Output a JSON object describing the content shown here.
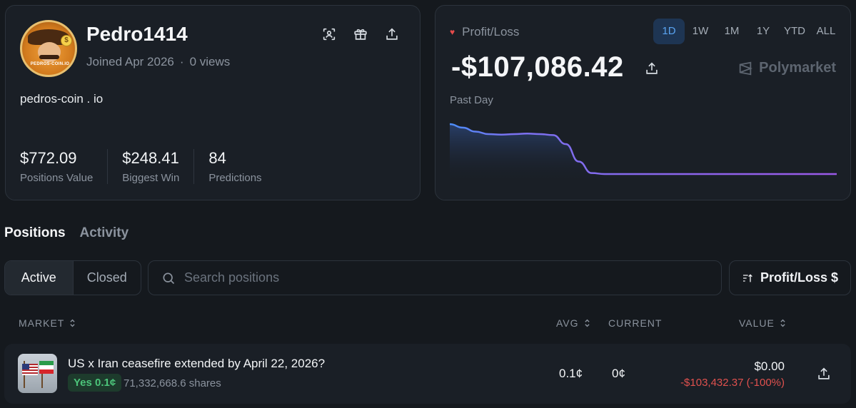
{
  "profile": {
    "username": "Pedro1414",
    "joined": "Joined Apr 2026",
    "views": "0 views",
    "bio": "pedros-coin . io",
    "avatar_text": "PEDROS-COIN.IO",
    "avatar_coin": "$",
    "actions": [
      {
        "name": "scan-icon"
      },
      {
        "name": "gift-icon"
      },
      {
        "name": "share-icon"
      }
    ],
    "stats": [
      {
        "value": "$772.09",
        "label": "Positions Value"
      },
      {
        "value": "$248.41",
        "label": "Biggest Win"
      },
      {
        "value": "84",
        "label": "Predictions"
      }
    ]
  },
  "pnl": {
    "title": "Profit/Loss",
    "value": "-$107,086.42",
    "brand": "Polymarket",
    "period_label": "Past Day",
    "ranges": [
      "1D",
      "1W",
      "1M",
      "1Y",
      "YTD",
      "ALL"
    ],
    "active_range": "1D",
    "colors": {
      "line_start": "#4b8df8",
      "line_end": "#9b59e8",
      "heart": "#e54b4b"
    }
  },
  "chart_data": {
    "type": "line",
    "title": "",
    "xlabel": "",
    "ylabel": "",
    "grid": false,
    "y_relative": [
      1.0,
      0.93,
      0.85,
      0.8,
      0.79,
      0.8,
      0.81,
      0.8,
      0.78,
      0.6,
      0.25,
      0.02,
      0.0,
      0.0,
      0.0,
      0.0,
      0.0,
      0.0,
      0.0,
      0.0,
      0.0,
      0.0,
      0.0,
      0.0,
      0.0,
      0.0,
      0.0,
      0.0,
      0.0,
      0.0,
      0.0
    ]
  },
  "tabs": [
    "Positions",
    "Activity"
  ],
  "filters": {
    "segments": [
      "Active",
      "Closed"
    ],
    "search_placeholder": "Search positions",
    "sort_label": "Profit/Loss $"
  },
  "table": {
    "headers": {
      "market": "MARKET",
      "avg": "AVG",
      "current": "CURRENT",
      "value": "VALUE"
    },
    "rows": [
      {
        "title": "US x Iran ceasefire extended by April 22, 2026?",
        "outcome": "Yes 0.1¢",
        "shares": "71,332,668.6 shares",
        "avg": "0.1¢",
        "current": "0¢",
        "value": "$0.00",
        "pnl": "-$103,432.37 (-100%)"
      }
    ]
  }
}
